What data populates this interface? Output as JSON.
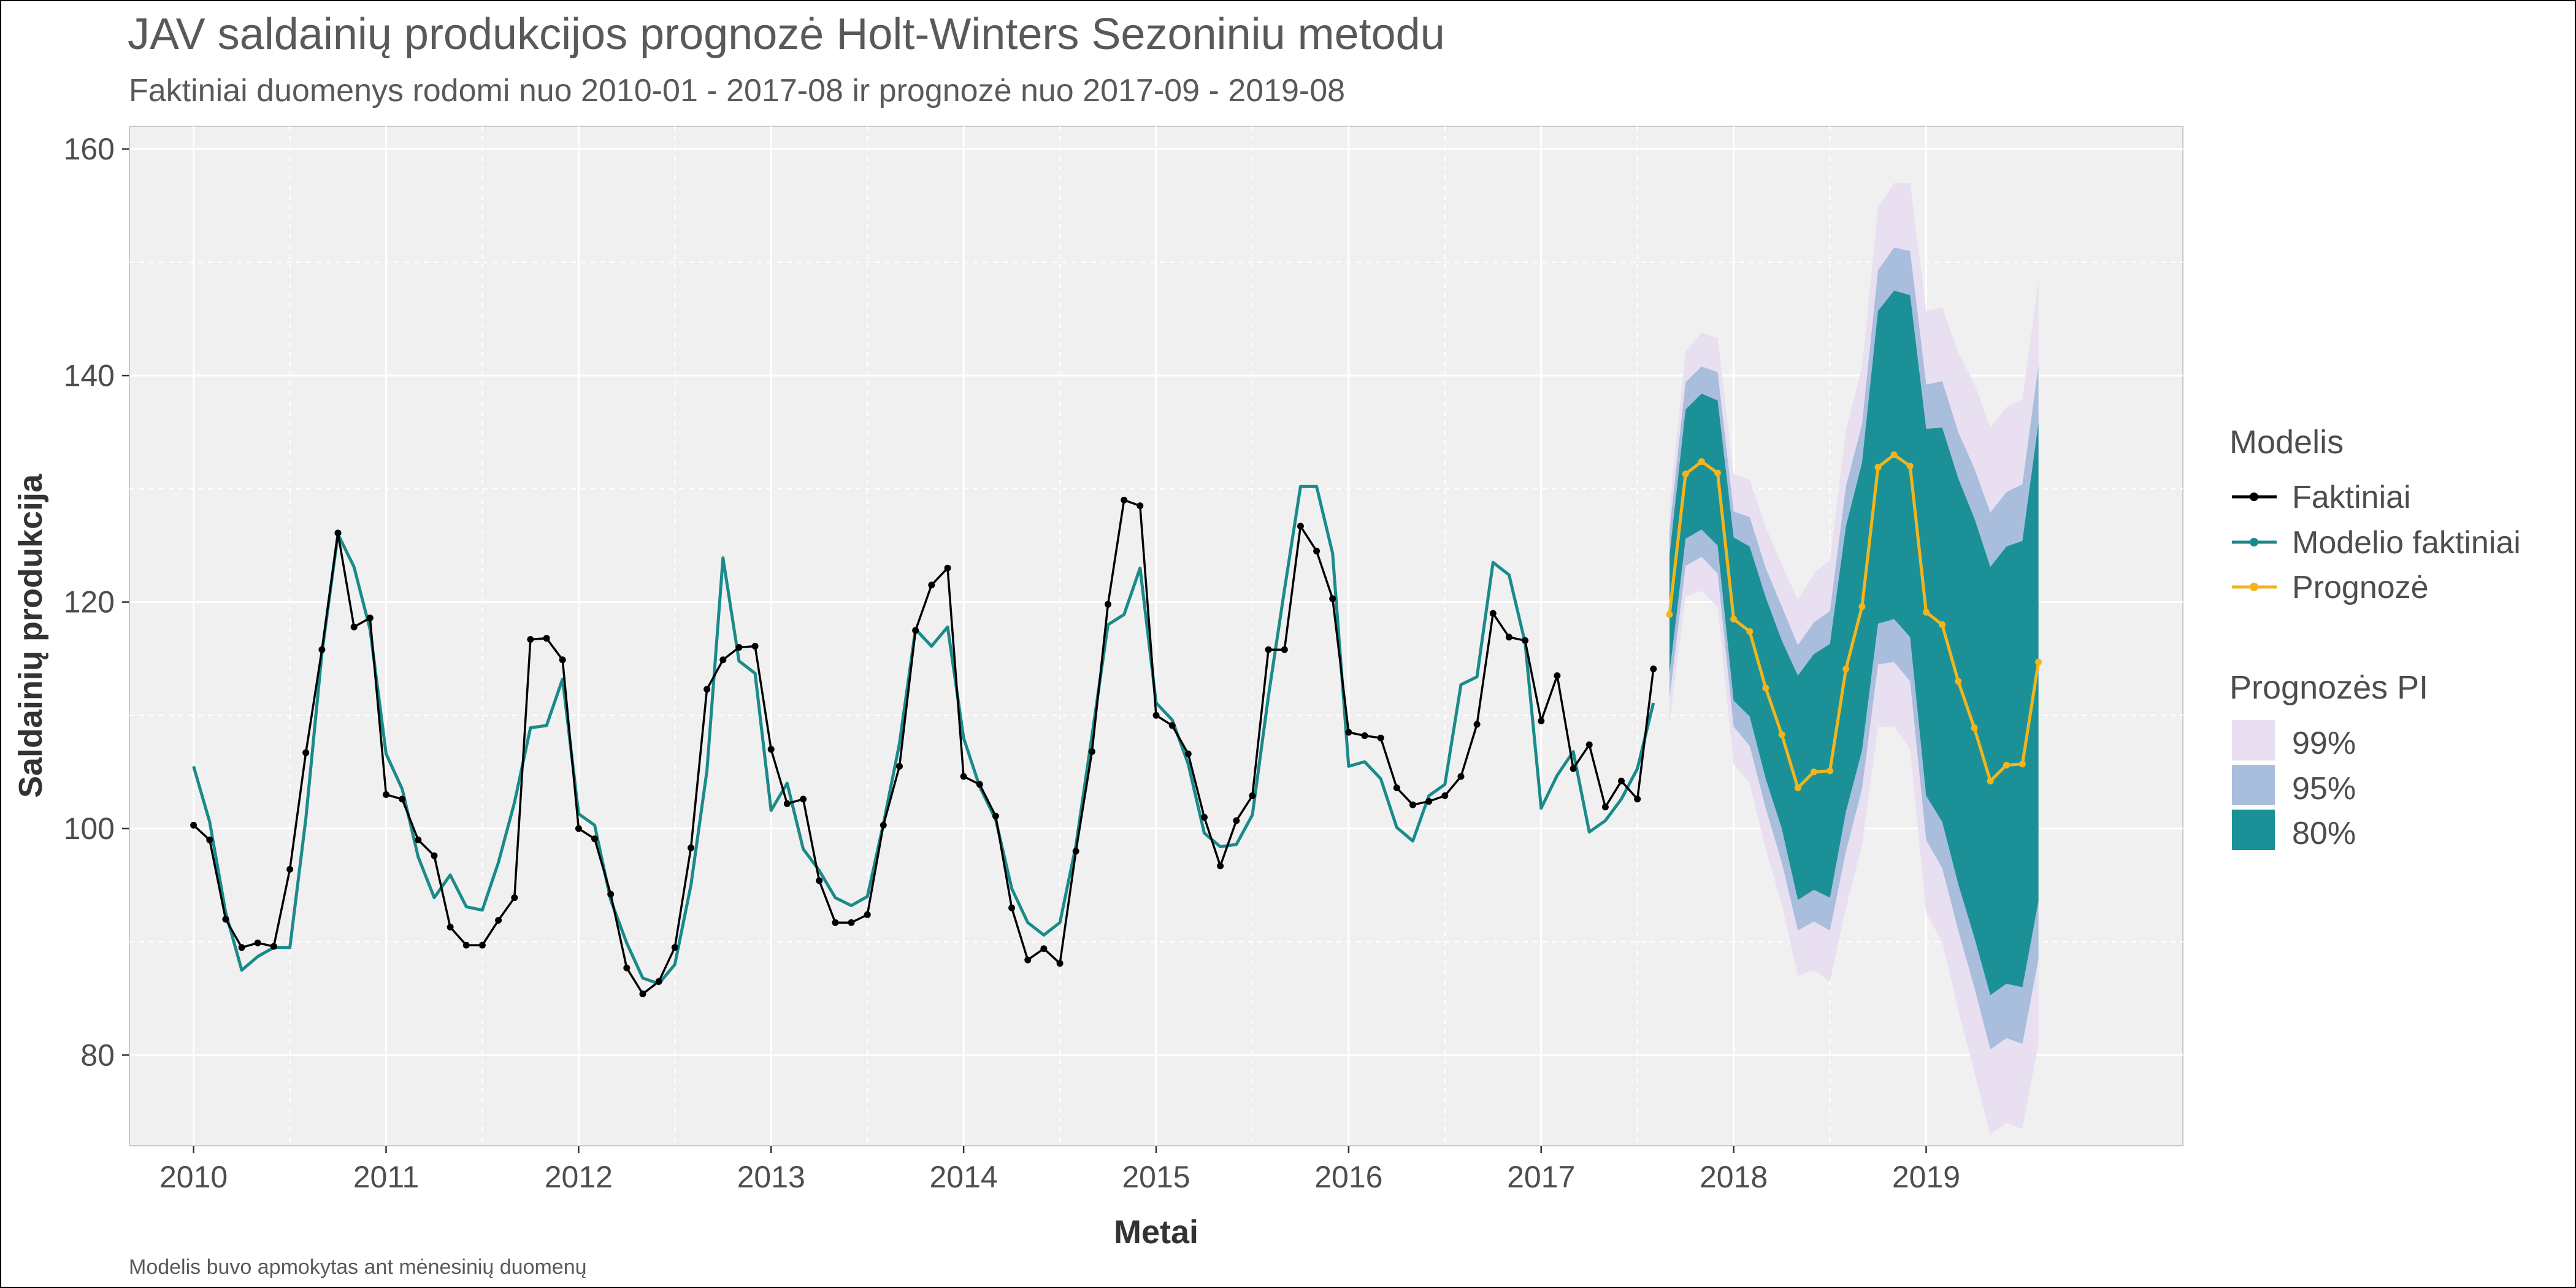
{
  "title": "JAV saldainių produkcijos prognozė Holt-Winters Sezoniniu metodu",
  "subtitle": "Faktiniai duomenys rodomi nuo 2010-01 - 2017-08 ir prognozė nuo 2017-09 - 2019-08",
  "caption": "Modelis buvo apmokytas ant mėnesinių duomenų",
  "colors": {
    "panel": "#f0f0f0",
    "grid": "#ffffff",
    "actual": "#000000",
    "fitted": "#1a8a8a",
    "forecast": "#f2b51d",
    "pi99": "#e8dff1",
    "pi95": "#a9bddd",
    "pi80": "#1b9197"
  },
  "legend": {
    "model_title": "Modelis",
    "model_items": [
      "Faktiniai",
      "Modelio faktiniai",
      "Prognozė"
    ],
    "pi_title": "Prognozės PI",
    "pi_items": [
      "99%",
      "95%",
      "80%"
    ]
  },
  "chart_data": {
    "type": "line",
    "title": "JAV saldainių produkcijos prognozė Holt-Winters Sezoniniu metodu",
    "xlabel": "Metai",
    "ylabel": "Saldainių produkcija",
    "x_ticks": [
      "2010",
      "2011",
      "2012",
      "2013",
      "2014",
      "2015",
      "2016",
      "2017",
      "2018",
      "2019"
    ],
    "y_ticks": [
      80,
      100,
      120,
      140,
      160
    ],
    "xlim": [
      "2009-09",
      "2020-05"
    ],
    "ylim": [
      72,
      162
    ],
    "grid": true,
    "legend_position": "right",
    "series": [
      {
        "name": "Faktiniai",
        "start": "2010-01",
        "values": [
          100.3,
          99.0,
          92.0,
          89.5,
          89.9,
          89.6,
          96.4,
          106.7,
          115.8,
          126.1,
          117.8,
          118.6,
          103.0,
          102.6,
          99.0,
          97.6,
          91.3,
          89.7,
          89.7,
          91.9,
          93.9,
          116.7,
          116.8,
          114.9,
          100.0,
          99.1,
          94.2,
          87.7,
          85.4,
          86.5,
          89.5,
          98.3,
          112.3,
          114.9,
          116.0,
          116.1,
          107.0,
          102.2,
          102.6,
          95.4,
          91.7,
          91.7,
          92.4,
          100.3,
          105.5,
          117.5,
          121.5,
          123.0,
          104.6,
          103.9,
          101.1,
          93.0,
          88.4,
          89.4,
          88.1,
          98.0,
          106.8,
          119.8,
          129.0,
          128.5,
          110.0,
          109.1,
          106.6,
          101.0,
          96.7,
          100.7,
          102.9,
          115.8,
          115.8,
          126.7,
          124.5,
          120.3,
          108.5,
          108.2,
          108.0,
          103.6,
          102.1,
          102.4,
          102.9,
          104.6,
          109.2,
          119.0,
          116.9,
          116.6,
          109.5,
          113.5,
          105.3,
          107.4,
          101.9,
          104.2,
          102.6,
          114.1
        ]
      },
      {
        "name": "Modelio faktiniai",
        "start": "2010-01",
        "values": [
          105.5,
          100.6,
          92.6,
          87.5,
          88.7,
          89.5,
          89.5,
          100.9,
          115.5,
          126.0,
          123.1,
          117.6,
          106.6,
          103.5,
          97.5,
          93.9,
          95.9,
          93.1,
          92.8,
          97.0,
          102.3,
          108.9,
          109.1,
          113.2,
          101.3,
          100.3,
          93.7,
          89.9,
          86.8,
          86.3,
          88.0,
          95.0,
          105.1,
          123.9,
          114.8,
          113.7,
          101.6,
          104.0,
          98.2,
          96.3,
          93.9,
          93.2,
          94.0,
          100.4,
          107.5,
          117.6,
          116.1,
          117.8,
          108.0,
          103.7,
          100.8,
          94.7,
          91.7,
          90.6,
          91.7,
          98.5,
          108.2,
          118.0,
          118.9,
          123.0,
          111.1,
          109.6,
          105.7,
          99.6,
          98.4,
          98.6,
          101.2,
          111.7,
          121.1,
          130.2,
          130.2,
          124.3,
          105.5,
          105.9,
          104.4,
          100.1,
          98.9,
          102.9,
          103.9,
          112.7,
          113.4,
          123.5,
          122.4,
          116.4,
          101.8,
          104.7,
          106.8,
          99.7,
          100.7,
          102.6,
          105.3,
          111.1
        ]
      },
      {
        "name": "Prognozė",
        "start": "2017-09",
        "values": [
          118.9,
          131.3,
          132.4,
          131.4,
          118.5,
          117.4,
          112.4,
          108.3,
          103.6,
          105.0,
          105.1,
          114.1,
          119.6,
          131.9,
          133.0,
          132.0,
          119.1,
          118.0,
          113.0,
          108.9,
          104.2,
          105.6,
          105.7,
          114.7
        ]
      }
    ],
    "intervals": {
      "start": "2017-09",
      "pi99": {
        "lower": [
          109.3,
          120.5,
          121.0,
          119.5,
          105.7,
          104.0,
          98.2,
          93.3,
          87.0,
          87.5,
          86.5,
          93.0,
          98.5,
          109.0,
          109.0,
          107.0,
          92.5,
          90.0,
          84.0,
          78.5,
          73.0,
          74.0,
          73.5,
          81.0
        ],
        "upper": [
          128.5,
          142.1,
          143.8,
          143.3,
          131.3,
          130.8,
          126.6,
          123.3,
          120.2,
          122.5,
          123.7,
          135.2,
          140.7,
          154.8,
          157.0,
          157.0,
          145.7,
          146.0,
          142.0,
          139.3,
          135.4,
          137.2,
          137.9,
          148.4
        ]
      },
      "pi95": {
        "lower": [
          111.5,
          123.2,
          124.0,
          122.5,
          109.0,
          107.3,
          101.8,
          97.0,
          91.0,
          91.8,
          91.0,
          98.0,
          103.5,
          114.5,
          114.7,
          113.0,
          99.0,
          96.5,
          91.0,
          86.0,
          80.5,
          81.5,
          81.0,
          88.5
        ],
        "upper": [
          126.3,
          139.4,
          140.8,
          140.3,
          128.0,
          127.5,
          123.0,
          119.6,
          116.2,
          118.2,
          119.2,
          130.2,
          135.7,
          149.3,
          151.3,
          151.0,
          139.2,
          139.5,
          135.0,
          131.8,
          127.9,
          129.7,
          130.4,
          140.9
        ]
      },
      "pi80": {
        "lower": [
          113.7,
          125.6,
          126.4,
          125.0,
          111.3,
          109.9,
          104.4,
          100.0,
          93.7,
          94.6,
          93.9,
          101.5,
          106.9,
          118.1,
          118.5,
          116.9,
          102.9,
          100.6,
          95.1,
          90.4,
          85.3,
          86.3,
          86.0,
          93.6
        ],
        "upper": [
          124.1,
          137.0,
          138.4,
          137.8,
          125.7,
          124.9,
          120.4,
          116.6,
          113.5,
          115.4,
          116.3,
          126.7,
          132.3,
          145.7,
          147.5,
          147.1,
          135.3,
          135.4,
          130.9,
          127.4,
          123.1,
          124.9,
          125.4,
          135.8
        ]
      }
    }
  }
}
